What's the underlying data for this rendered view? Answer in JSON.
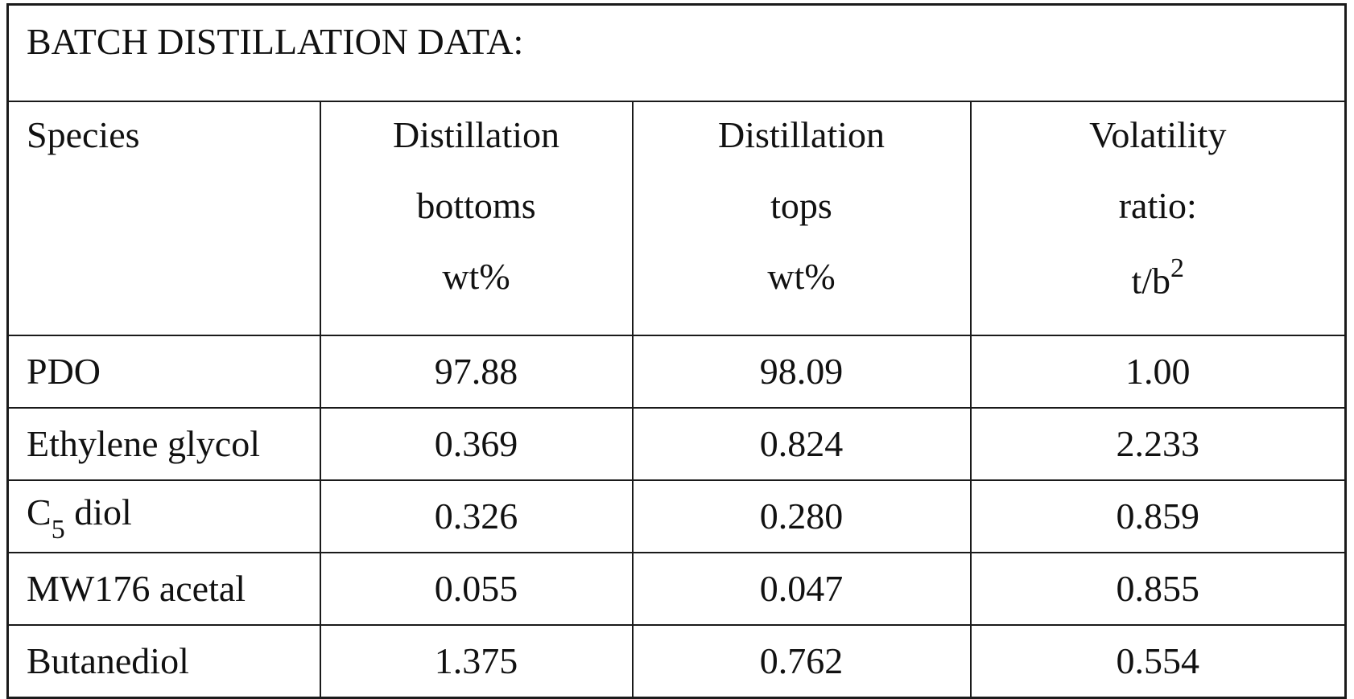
{
  "table": {
    "title": "BATCH DISTILLATION DATA:",
    "headers": [
      {
        "lines": [
          "Species"
        ]
      },
      {
        "lines": [
          "Distillation",
          "bottoms",
          "wt%"
        ]
      },
      {
        "lines": [
          "Distillation",
          "tops",
          "wt%"
        ]
      },
      {
        "lines": [
          "Volatility",
          "ratio:",
          "t/b"
        ],
        "superscript": "2"
      }
    ],
    "rows": [
      {
        "species": "PDO",
        "bottoms": "97.88",
        "tops": "98.09",
        "ratio": "1.00"
      },
      {
        "species": "Ethylene glycol",
        "bottoms": "0.369",
        "tops": "0.824",
        "ratio": "2.233"
      },
      {
        "species_prefix": "C",
        "species_subscript": "5",
        "species_suffix": " diol",
        "bottoms": "0.326",
        "tops": "0.280",
        "ratio": "0.859"
      },
      {
        "species": "MW176 acetal",
        "bottoms": "0.055",
        "tops": "0.047",
        "ratio": "0.855"
      },
      {
        "species": "Butanediol",
        "bottoms": "1.375",
        "tops": "0.762",
        "ratio": "0.554"
      }
    ]
  }
}
